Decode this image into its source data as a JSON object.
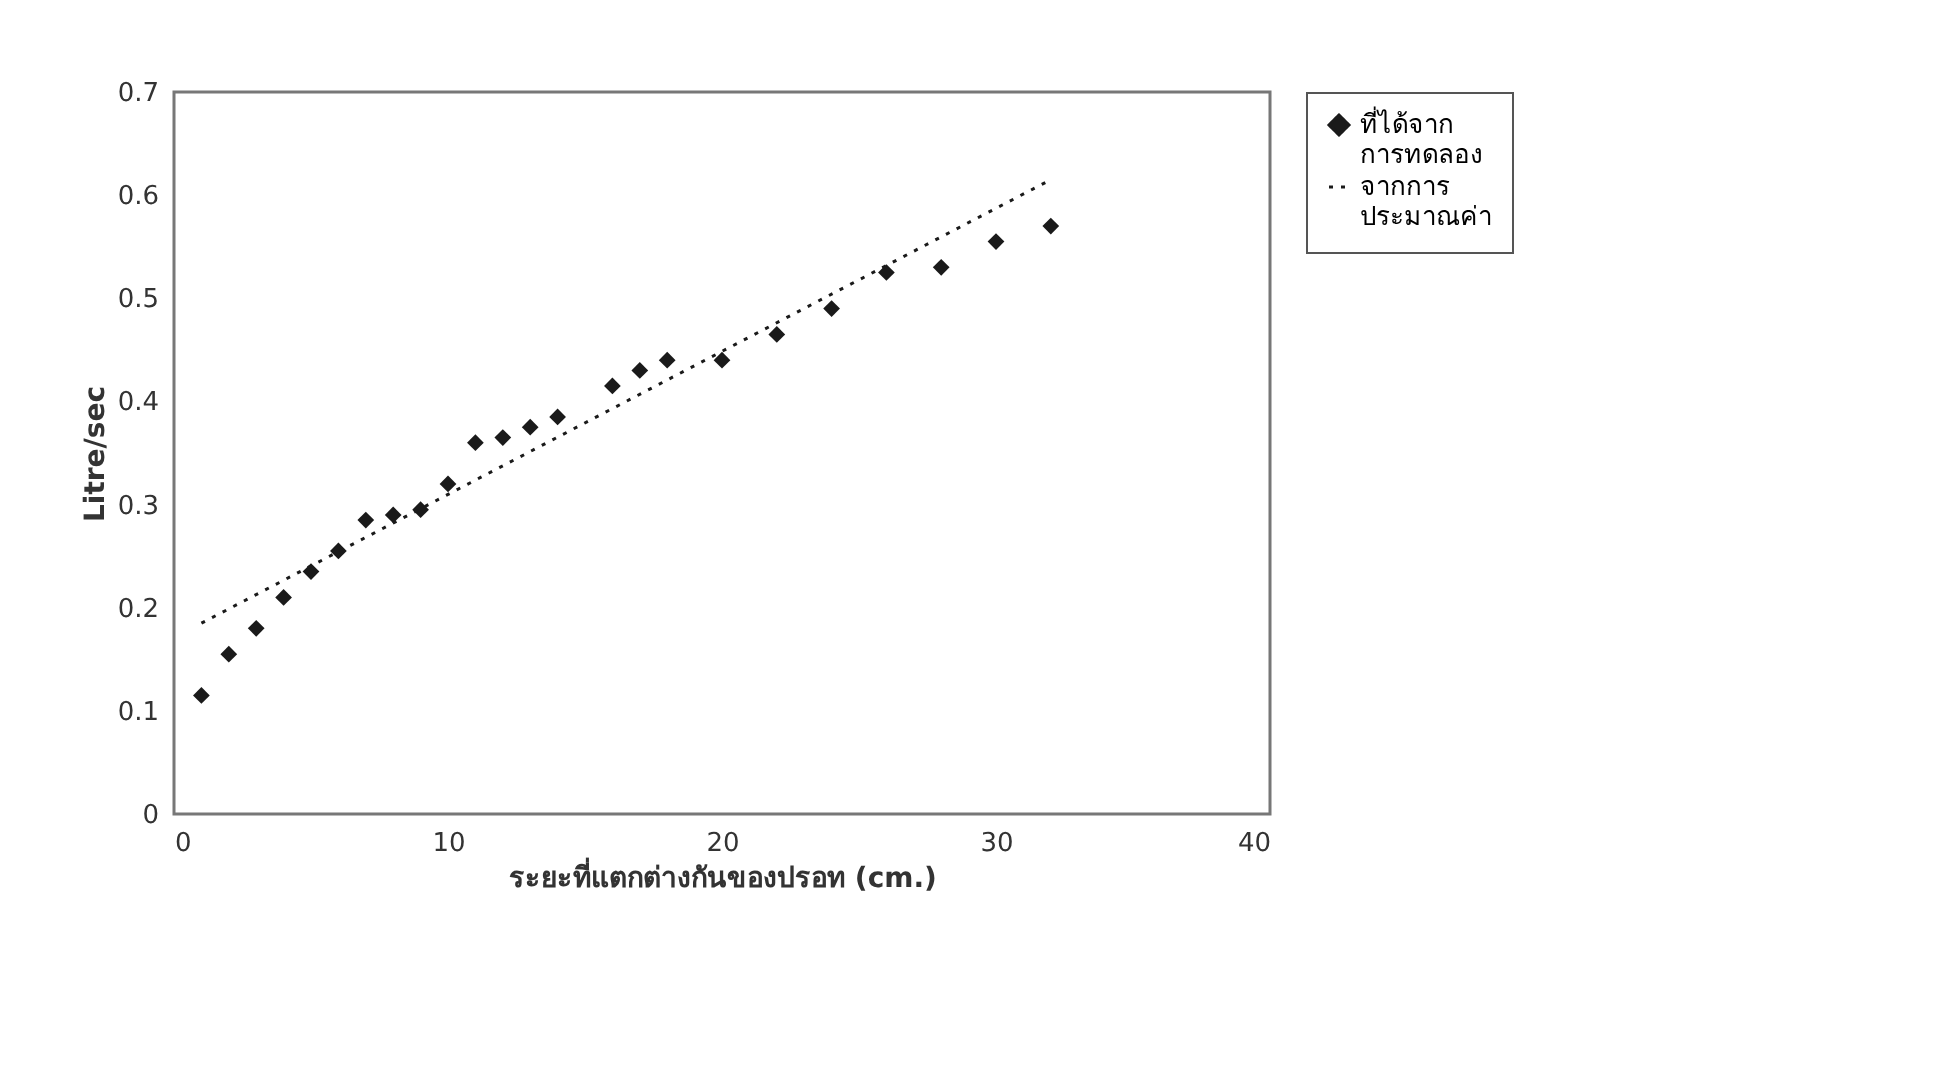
{
  "chart_data": {
    "type": "scatter",
    "xlabel": "ระยะที่แตกต่างกันของปรอท (cm.)",
    "ylabel": "Litre/sec",
    "xlim": [
      0,
      40
    ],
    "xticks": [
      0,
      10,
      20,
      30,
      40
    ],
    "ylim": [
      0,
      0.7
    ],
    "yticks": [
      0,
      0.1,
      0.2,
      0.3,
      0.4,
      0.5,
      0.6,
      0.7
    ],
    "grid": false,
    "legend": "right",
    "series": [
      {
        "name": "ที่ได้จาก การทดลอง",
        "marker": "diamond",
        "color": "#1a1a1a",
        "x": [
          1,
          2,
          3,
          4,
          5,
          6,
          7,
          8,
          9,
          10,
          11,
          12,
          13,
          14,
          16,
          17,
          18,
          20,
          22,
          24,
          26,
          28,
          30,
          32
        ],
        "values": [
          0.115,
          0.155,
          0.18,
          0.21,
          0.235,
          0.255,
          0.285,
          0.29,
          0.295,
          0.32,
          0.36,
          0.365,
          0.375,
          0.385,
          0.415,
          0.43,
          0.44,
          0.44,
          0.465,
          0.49,
          0.525,
          0.53,
          0.555,
          0.57
        ]
      },
      {
        "name": "จากการ ประมาณค่า",
        "type": "line",
        "line_style": "dotted",
        "marker": "none",
        "color": "#1a1a1a",
        "x": [
          1,
          32
        ],
        "values": [
          0.185,
          0.615
        ]
      }
    ]
  }
}
